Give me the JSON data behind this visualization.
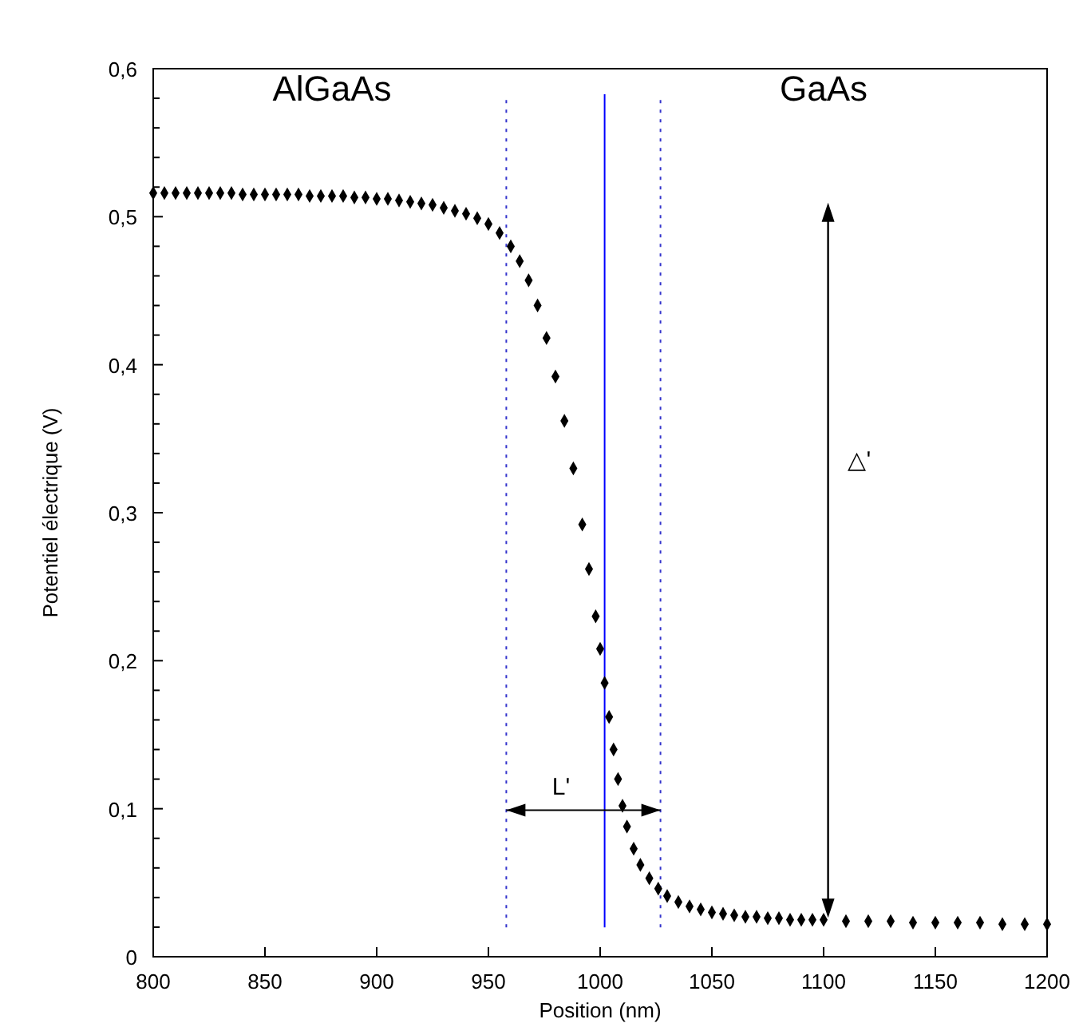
{
  "chart_data": {
    "type": "scatter",
    "xlabel": "Position (nm)",
    "ylabel": "Potentiel électrique (V)",
    "xlim": [
      800,
      1200
    ],
    "ylim": [
      0,
      0.6
    ],
    "xticks": [
      800,
      850,
      900,
      950,
      1000,
      1050,
      1100,
      1150,
      1200
    ],
    "yticks": [
      {
        "value": 0,
        "label": "0"
      },
      {
        "value": 0.02,
        "label": null
      },
      {
        "value": 0.04,
        "label": null
      },
      {
        "value": 0.06,
        "label": null
      },
      {
        "value": 0.08,
        "label": null
      },
      {
        "value": 0.1,
        "label": "0,1"
      },
      {
        "value": 0.12,
        "label": null
      },
      {
        "value": 0.14,
        "label": null
      },
      {
        "value": 0.16,
        "label": null
      },
      {
        "value": 0.18,
        "label": null
      },
      {
        "value": 0.2,
        "label": "0,2"
      },
      {
        "value": 0.22,
        "label": null
      },
      {
        "value": 0.24,
        "label": null
      },
      {
        "value": 0.26,
        "label": null
      },
      {
        "value": 0.28,
        "label": null
      },
      {
        "value": 0.3,
        "label": "0,3"
      },
      {
        "value": 0.32,
        "label": null
      },
      {
        "value": 0.34,
        "label": null
      },
      {
        "value": 0.36,
        "label": null
      },
      {
        "value": 0.38,
        "label": null
      },
      {
        "value": 0.4,
        "label": "0,4"
      },
      {
        "value": 0.42,
        "label": null
      },
      {
        "value": 0.44,
        "label": null
      },
      {
        "value": 0.46,
        "label": null
      },
      {
        "value": 0.48,
        "label": null
      },
      {
        "value": 0.5,
        "label": "0,5"
      },
      {
        "value": 0.52,
        "label": null
      },
      {
        "value": 0.54,
        "label": null
      },
      {
        "value": 0.56,
        "label": null
      },
      {
        "value": 0.58,
        "label": null
      },
      {
        "value": 0.6,
        "label": "0,6"
      }
    ],
    "marker": "diamond",
    "grid": false,
    "series": [
      {
        "color": "#000000",
        "x": [
          800,
          805,
          810,
          815,
          820,
          825,
          830,
          835,
          840,
          845,
          850,
          855,
          860,
          865,
          870,
          875,
          880,
          885,
          890,
          895,
          900,
          905,
          910,
          915,
          920,
          925,
          930,
          935,
          940,
          945,
          950,
          955,
          960,
          964,
          968,
          972,
          976,
          980,
          984,
          988,
          992,
          995,
          998,
          1000,
          1002,
          1004,
          1006,
          1008,
          1010,
          1012,
          1015,
          1018,
          1022,
          1026,
          1030,
          1035,
          1040,
          1045,
          1050,
          1055,
          1060,
          1065,
          1070,
          1075,
          1080,
          1085,
          1090,
          1095,
          1100,
          1110,
          1120,
          1130,
          1140,
          1150,
          1160,
          1170,
          1180,
          1190,
          1200
        ],
        "values": [
          0.516,
          0.516,
          0.516,
          0.516,
          0.516,
          0.516,
          0.516,
          0.516,
          0.515,
          0.515,
          0.515,
          0.515,
          0.515,
          0.515,
          0.514,
          0.514,
          0.514,
          0.514,
          0.513,
          0.513,
          0.512,
          0.512,
          0.511,
          0.51,
          0.509,
          0.508,
          0.506,
          0.504,
          0.502,
          0.499,
          0.495,
          0.489,
          0.48,
          0.47,
          0.457,
          0.44,
          0.418,
          0.392,
          0.362,
          0.33,
          0.292,
          0.262,
          0.23,
          0.208,
          0.185,
          0.162,
          0.14,
          0.12,
          0.102,
          0.088,
          0.073,
          0.062,
          0.053,
          0.046,
          0.041,
          0.037,
          0.034,
          0.032,
          0.03,
          0.029,
          0.028,
          0.027,
          0.027,
          0.026,
          0.026,
          0.025,
          0.025,
          0.025,
          0.025,
          0.024,
          0.024,
          0.024,
          0.023,
          0.023,
          0.023,
          0.023,
          0.022,
          0.022,
          0.022
        ]
      }
    ],
    "ref_lines": [
      {
        "axis": "x",
        "value": 958,
        "color": "#3333cc",
        "line_style": "dotted"
      },
      {
        "axis": "x",
        "value": 1002,
        "color": "#0000ff",
        "line_style": "solid"
      },
      {
        "axis": "x",
        "value": 1027,
        "color": "#3333cc",
        "line_style": "dotted"
      }
    ],
    "annotations": [
      "AlGaAs",
      "GaAs",
      "L'",
      "△'"
    ]
  }
}
